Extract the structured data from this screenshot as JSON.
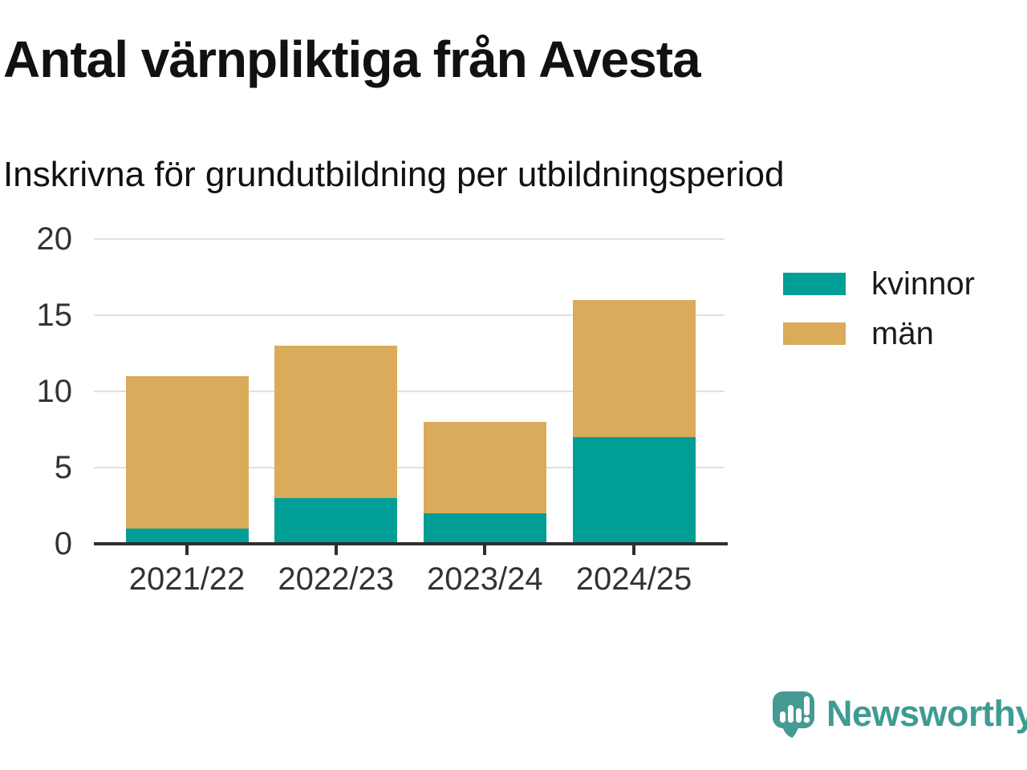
{
  "title": "Antal värnpliktiga från Avesta",
  "subtitle": "Inskrivna för grundutbildning per utbildningsperiod",
  "chart_data": {
    "type": "bar",
    "stacked": true,
    "categories": [
      "2021/22",
      "2022/23",
      "2023/24",
      "2024/25"
    ],
    "series": [
      {
        "name": "kvinnor",
        "color": "#009e94",
        "values": [
          1,
          3,
          2,
          7
        ]
      },
      {
        "name": "män",
        "color": "#d9ab5b",
        "values": [
          10,
          10,
          6,
          9
        ]
      }
    ],
    "stack_totals": [
      11,
      13,
      8,
      16
    ],
    "ylim": [
      0,
      20
    ],
    "yticks": [
      0,
      5,
      10,
      15,
      20
    ],
    "grid": true,
    "legend_position": "right-of-plot"
  },
  "legend": {
    "items": [
      {
        "label": "kvinnor",
        "color": "#009e94"
      },
      {
        "label": "män",
        "color": "#d9ab5b"
      }
    ]
  },
  "footer": {
    "brand": "Newsworthy",
    "logo_icon": "bar-chart-speech-bubble-icon"
  },
  "colors": {
    "kvinnor": "#009e94",
    "man": "#d9ab5b",
    "axis_line": "#2e2e2e",
    "gridline": "#e0e0e0",
    "tick_text": "#333333",
    "title_text": "#111111",
    "brand_teal": "#3f9b94",
    "logo_fill": "#459a94",
    "background": "#ffffff"
  }
}
